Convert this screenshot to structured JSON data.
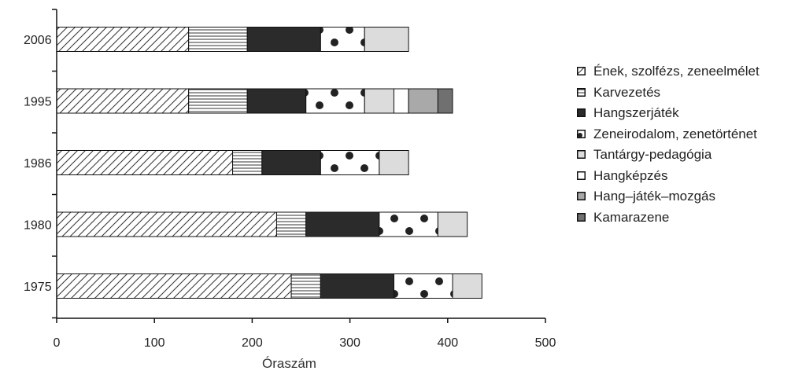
{
  "chart_data": {
    "type": "bar",
    "orientation": "horizontal",
    "stacked": true,
    "title": "",
    "xlabel": "Óraszám",
    "ylabel": "",
    "xlim": [
      0,
      500
    ],
    "xticks": [
      0,
      100,
      200,
      300,
      400,
      500
    ],
    "categories": [
      "2006",
      "1995",
      "1986",
      "1980",
      "1975"
    ],
    "series": [
      {
        "name": "Ének, szolfézs, zeneelmélet",
        "pattern": "diagonal-hatch",
        "values": [
          135,
          135,
          180,
          225,
          240
        ]
      },
      {
        "name": "Karvezetés",
        "pattern": "horizontal-lines",
        "values": [
          60,
          60,
          30,
          30,
          30
        ]
      },
      {
        "name": "Hangszerjáték",
        "pattern": "solid-dark",
        "color": "#2b2b2b",
        "values": [
          75,
          60,
          60,
          75,
          75
        ]
      },
      {
        "name": "Zeneirodalom, zenetörténet",
        "pattern": "dots",
        "values": [
          45,
          60,
          60,
          60,
          60
        ]
      },
      {
        "name": "Tantárgy-pedagógia",
        "pattern": "solid-light",
        "color": "#dcdcdc",
        "values": [
          45,
          30,
          30,
          30,
          30
        ]
      },
      {
        "name": "Hangképzés",
        "pattern": "solid-white",
        "color": "#ffffff",
        "values": [
          0,
          15,
          0,
          0,
          0
        ]
      },
      {
        "name": "Hang–játék–mozgás",
        "pattern": "solid-mid",
        "color": "#a9a9a9",
        "values": [
          0,
          30,
          0,
          0,
          0
        ]
      },
      {
        "name": "Kamarazene",
        "pattern": "solid-dim",
        "color": "#707070",
        "values": [
          0,
          15,
          0,
          0,
          0
        ]
      }
    ],
    "legend_position": "right",
    "grid": false
  }
}
